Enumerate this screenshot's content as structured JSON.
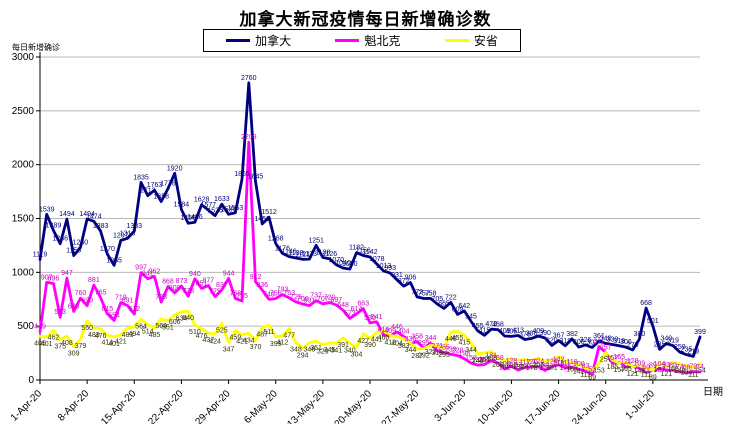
{
  "title": "加拿大新冠疫情每日新增确诊数",
  "legend": {
    "items": [
      {
        "label": "加拿大",
        "color": "#000080"
      },
      {
        "label": "魁北克",
        "color": "#FF00FF"
      },
      {
        "label": "安省",
        "color": "#FFFF00"
      }
    ]
  },
  "chart_data": {
    "type": "line",
    "title": "加拿大新冠疫情每日新增确诊数",
    "ylabel": "每日新增确诊",
    "xlabel": "日期",
    "ylim": [
      0,
      3000
    ],
    "yticks": [
      0,
      500,
      1000,
      1500,
      2000,
      2500,
      3000
    ],
    "grid": "horizontal",
    "legend_position": "top",
    "x_tick_labels": [
      "1-Apr-20",
      "8-Apr-20",
      "15-Apr-20",
      "22-Apr-20",
      "29-Apr-20",
      "6-May-20",
      "13-May-20",
      "20-May-20",
      "27-May-20",
      "3-Jun-20",
      "10-Jun-20",
      "17-Jun-20",
      "24-Jun-20",
      "1-Jul-20"
    ],
    "x_tick_interval_days": 7,
    "series": [
      {
        "name": "加拿大",
        "color": "#000080",
        "label_color": "#000080",
        "values": [
          1119,
          1539,
          1389,
          1266,
          1494,
          1155,
          1230,
          1494,
          1474,
          1383,
          1170,
          1065,
          1297,
          1316,
          1383,
          1835,
          1713,
          1763,
          1658,
          1778,
          1920,
          1584,
          1456,
          1466,
          1628,
          1577,
          1526,
          1633,
          1539,
          1553,
          1865,
          2760,
          1845,
          1450,
          1512,
          1268,
          1176,
          1146,
          1133,
          1121,
          1123,
          1251,
          1138,
          1126,
          1070,
          1040,
          1030,
          1182,
          1156,
          1142,
          1078,
          1013,
          993,
          931,
          872,
          906,
          772,
          757,
          758,
          705,
          665,
          722,
          609,
          642,
          545,
          455,
          415,
          472,
          468,
          409,
          405,
          413,
          376,
          386,
          409,
          390,
          320,
          367,
          318,
          382,
          306,
          326,
          302,
          361,
          340,
          330,
          318,
          306,
          279,
          380,
          668,
          501,
          285,
          340,
          319,
          259,
          235,
          219,
          399
        ]
      },
      {
        "name": "魁北克",
        "color": "#FF00FF",
        "label_color": "#CC00CC",
        "values": [
          449,
          907,
          896,
          583,
          947,
          636,
          760,
          690,
          881,
          765,
          615,
          554,
          719,
          691,
          612,
          997,
          941,
          962,
          723,
          868,
          809,
          873,
          778,
          940,
          851,
          877,
          775,
          837,
          944,
          758,
          735,
          2209,
          912,
          836,
          749,
          756,
          793,
          763,
          725,
          706,
          691,
          737,
          707,
          720,
          697,
          648,
          573,
          614,
          663,
          530,
          541,
          419,
          409,
          446,
          404,
          336,
          358,
          295,
          344,
          271,
          255,
          239,
          228,
          198,
          158,
          138,
          144,
          181,
          158,
          102,
          128,
          92,
          117,
          120,
          124,
          89,
          124,
          142,
          111,
          119,
          100,
          83,
          53,
          311,
          257,
          157,
          165,
          121,
          128,
          109,
          69,
          89,
          104,
          93,
          89,
          74,
          68,
          79,
          74
        ]
      },
      {
        "name": "安省",
        "color": "#FFFF00",
        "label_color": "#333300",
        "values": [
          405,
          401,
          462,
          375,
          408,
          309,
          379,
          550,
          483,
          476,
          414,
          401,
          421,
          483,
          494,
          564,
          514,
          485,
          568,
          551,
          606,
          634,
          640,
          510,
          476,
          437,
          424,
          525,
          347,
          459,
          421,
          434,
          370,
          487,
          511,
          399,
          412,
          477,
          348,
          294,
          346,
          361,
          329,
          345,
          341,
          391,
          340,
          304,
          427,
          390,
          441,
          460,
          412,
          404,
          383,
          344,
          287,
          292,
          323,
          318,
          295,
          446,
          455,
          415,
          344,
          243,
          251,
          266,
          203,
          182,
          197,
          184,
          190,
          178,
          206,
          175,
          181,
          216,
          175,
          163,
          142,
          111,
          89,
          153,
          257,
          185,
          157,
          165,
          121,
          148,
          111,
          89,
          157,
          121,
          165,
          148,
          134,
          111,
          154
        ]
      }
    ]
  }
}
